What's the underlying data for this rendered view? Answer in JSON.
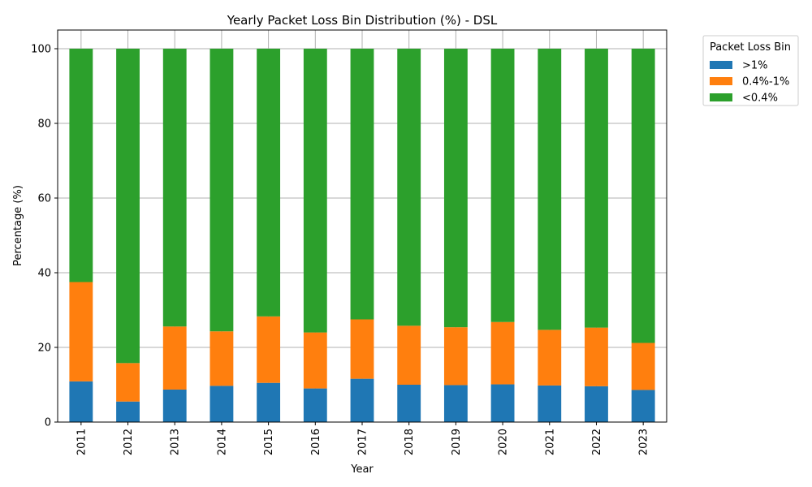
{
  "chart_data": {
    "type": "bar",
    "stacked": true,
    "title": "Yearly Packet Loss Bin Distribution (%) - DSL",
    "xlabel": "Year",
    "ylabel": "Percentage (%)",
    "ylim": [
      0,
      105
    ],
    "yticks": [
      0,
      20,
      40,
      60,
      80,
      100
    ],
    "grid": true,
    "legend": {
      "title": "Packet Loss Bin",
      "placement": "outside-top-right"
    },
    "categories": [
      "2011",
      "2012",
      "2013",
      "2014",
      "2015",
      "2016",
      "2017",
      "2018",
      "2019",
      "2020",
      "2021",
      "2022",
      "2023"
    ],
    "series": [
      {
        "name": ">1%",
        "color": "#1f77b4",
        "values": [
          10.9,
          5.5,
          8.7,
          9.7,
          10.5,
          9.0,
          11.6,
          10.0,
          9.9,
          10.1,
          9.8,
          9.6,
          8.6
        ]
      },
      {
        "name": "0.4%-1%",
        "color": "#ff7f0e",
        "values": [
          26.6,
          10.3,
          16.9,
          14.6,
          17.8,
          15.0,
          15.9,
          15.8,
          15.5,
          16.7,
          14.9,
          15.7,
          12.6
        ]
      },
      {
        "name": "<0.4%",
        "color": "#2ca02c",
        "values": [
          62.5,
          84.2,
          74.4,
          75.7,
          71.7,
          76.0,
          72.5,
          74.2,
          74.6,
          73.2,
          75.3,
          74.7,
          78.8
        ]
      }
    ]
  }
}
